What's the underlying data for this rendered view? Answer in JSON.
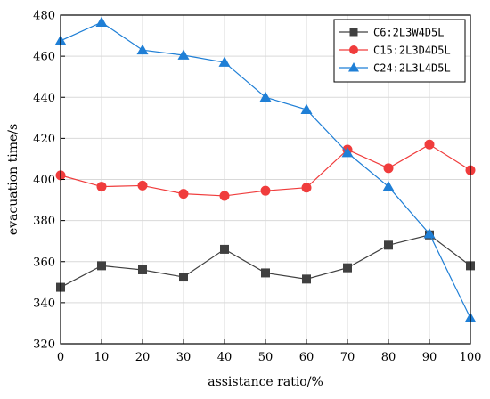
{
  "chart_data": {
    "type": "line",
    "title": "",
    "xlabel": "assistance ratio/%",
    "ylabel": "evacuation time/s",
    "x": [
      0,
      10,
      20,
      30,
      40,
      50,
      60,
      70,
      80,
      90,
      100
    ],
    "xlim": [
      0,
      100
    ],
    "ylim": [
      320,
      480
    ],
    "xticks": [
      0,
      10,
      20,
      30,
      40,
      50,
      60,
      70,
      80,
      90,
      100
    ],
    "yticks": [
      320,
      340,
      360,
      380,
      400,
      420,
      440,
      460,
      480
    ],
    "grid": true,
    "legend_position": "top-right",
    "series": [
      {
        "name": "C6:2L3W4D5L",
        "color": "#404040",
        "marker": "square",
        "values": [
          347.5,
          358,
          356,
          352.5,
          366,
          354.5,
          351.5,
          357,
          368,
          373,
          358
        ]
      },
      {
        "name": "C15:2L3D4D5L",
        "color": "#f03c3c",
        "marker": "circle",
        "values": [
          402,
          396.5,
          397,
          393,
          392,
          394.5,
          396,
          414.5,
          405.5,
          417,
          404.5
        ]
      },
      {
        "name": "C24:2L3L4D5L",
        "color": "#1f7fd6",
        "marker": "triangle",
        "values": [
          467.5,
          476.5,
          463,
          460.5,
          457,
          440,
          434,
          413,
          396.5,
          373.5,
          332.5
        ]
      }
    ]
  }
}
